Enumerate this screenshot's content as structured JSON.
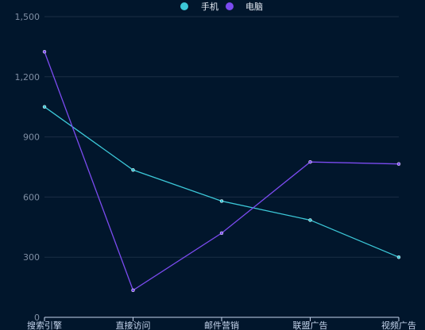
{
  "chart_data": {
    "type": "line",
    "categories": [
      "搜索引擎",
      "直接访问",
      "邮件营销",
      "联盟广告",
      "视频广告"
    ],
    "ylim": [
      0,
      1500
    ],
    "yticks": [
      0,
      300,
      600,
      900,
      1200,
      1500
    ],
    "ytick_labels": [
      "0",
      "300",
      "600",
      "900",
      "1,200",
      "1,500"
    ],
    "grid": true,
    "legend_position": "top-center",
    "series": [
      {
        "name": "手机",
        "color": "#3cc8d8",
        "values": [
          1050,
          735,
          580,
          485,
          300
        ]
      },
      {
        "name": "电脑",
        "color": "#7b4bf0",
        "values": [
          1325,
          135,
          420,
          775,
          765
        ]
      }
    ],
    "colors": {
      "background": "#01162c",
      "grid": "#1b2e45",
      "axis": "#c7d6ee"
    }
  }
}
